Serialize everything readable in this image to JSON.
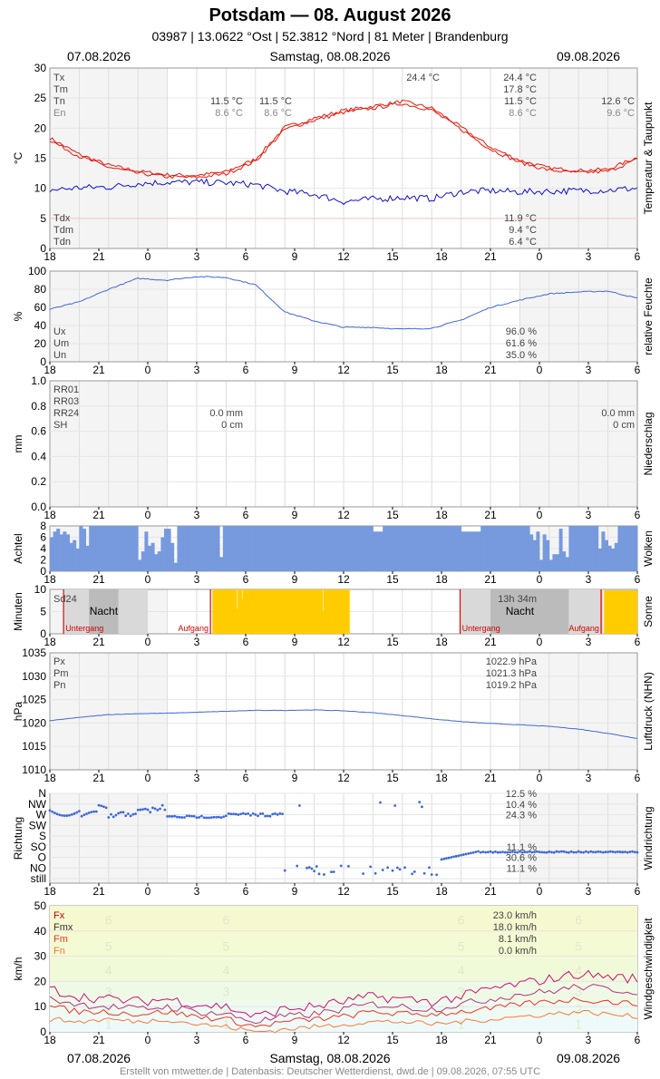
{
  "header": {
    "title": "Potsdam  —  08. August 2026",
    "subtitle": "03987  |  13.0622 °Ost  |  52.3812 °Nord  |  81 Meter  |  Brandenburg",
    "date_left": "07.08.2026",
    "date_center": "Samstag, 08.08.2026",
    "date_right": "09.08.2026"
  },
  "footer": {
    "date_left": "07.08.2026",
    "date_center": "Samstag, 08.08.2026",
    "date_right": "09.08.2026",
    "credit": "Erstellt von mtwetter.de | Datenbasis: Deutscher Wetterdienst, dwd.de | 09.08.2026, 07:55 UTC"
  },
  "x_ticks": [
    "18",
    "21",
    "0",
    "3",
    "6",
    "9",
    "12",
    "15",
    "18",
    "21",
    "0",
    "3",
    "6"
  ],
  "colors": {
    "temp": "#e8180c",
    "dew": "#1010cc",
    "humidity": "#3d68d8",
    "cloud": "#7799dd",
    "sun": "#ffcc00",
    "pressure": "#3d68d8",
    "wind_dir": "#3d68d8",
    "wind_fx": "#cc1077",
    "wind_fmx": "#bb3377",
    "wind_fm": "#ee3322",
    "wind_fn": "#ff7733"
  },
  "chart_data": [
    {
      "id": "temperature",
      "type": "line",
      "ylabel": "°C",
      "side_label": "Temperatur & Taupunkt",
      "ylim": [
        0,
        30
      ],
      "yticks": [
        0,
        5,
        10,
        15,
        20,
        25,
        30
      ],
      "legend_top": [
        "Tx",
        "Tm",
        "Tn",
        "En"
      ],
      "legend_bottom": [
        "Tdx",
        "Tdm",
        "Tdn"
      ],
      "annotations": {
        "day1_tn": "11.5 °C",
        "day1_en": "8.6 °C",
        "day2_tn": "11.5 °C",
        "day2_en": "8.6 °C",
        "peak_label": "24.4 °C",
        "day2_tx": "24.4 °C",
        "day2_tm": "17.8 °C",
        "day2_tn_r": "11.5 °C",
        "day2_en_r": "8.6 °C",
        "day3_tn": "12.6 °C",
        "day3_en": "9.6 °C",
        "tdx": "11.9 °C",
        "tdm": "9.4 °C",
        "tdn": "6.4 °C"
      },
      "series": [
        {
          "name": "Tm",
          "x": [
            0,
            3,
            6,
            9,
            12,
            15,
            18,
            21,
            24,
            27,
            30,
            33,
            36,
            39,
            42,
            45,
            48,
            51,
            54,
            57,
            60
          ],
          "values": [
            18.0,
            15.3,
            13.5,
            12.5,
            11.9,
            11.8,
            12.4,
            14.5,
            19.8,
            21.3,
            22.6,
            23.3,
            24.1,
            23.0,
            19.8,
            16.5,
            14.3,
            13.0,
            12.6,
            12.8,
            14.8
          ]
        },
        {
          "name": "Td",
          "x": [
            0,
            3,
            6,
            9,
            12,
            15,
            18,
            21,
            24,
            27,
            30,
            33,
            36,
            39,
            42,
            45,
            48,
            51,
            54,
            57,
            60
          ],
          "values": [
            9.7,
            10.1,
            10.2,
            10.8,
            11.0,
            11.0,
            10.9,
            10.6,
            9.5,
            9.0,
            7.8,
            8.2,
            8.5,
            8.3,
            9.4,
            9.6,
            9.4,
            9.5,
            9.6,
            9.7,
            10.0
          ]
        }
      ]
    },
    {
      "id": "humidity",
      "type": "line",
      "ylabel": "%",
      "side_label": "relative Feuchte",
      "ylim": [
        0,
        100
      ],
      "yticks": [
        0,
        20,
        40,
        60,
        80,
        100
      ],
      "legend": [
        "Ux",
        "Um",
        "Un"
      ],
      "annotations": {
        "ux": "96.0 %",
        "um": "61.6 %",
        "un": "35.0 %"
      },
      "series": [
        {
          "name": "U",
          "x": [
            0,
            3,
            6,
            9,
            12,
            15,
            18,
            21,
            24,
            27,
            30,
            33,
            36,
            39,
            42,
            45,
            48,
            51,
            54,
            57,
            60
          ],
          "values": [
            58,
            66,
            80,
            92,
            90,
            94,
            93,
            85,
            55,
            45,
            38,
            38,
            36,
            37,
            46,
            60,
            68,
            75,
            77,
            78,
            70
          ]
        }
      ]
    },
    {
      "id": "precipitation",
      "type": "bar",
      "ylabel": "mm",
      "side_label": "Niederschlag",
      "ylim": [
        0,
        1.0
      ],
      "yticks": [
        "0.0",
        "0.2",
        "0.4",
        "0.6",
        "0.8",
        "1.0"
      ],
      "legend": [
        "RR01",
        "RR03",
        "RR24",
        "SH"
      ],
      "annotations": {
        "day1_rr": "0.0 mm",
        "day1_sh": "0 cm",
        "day2_rr": "0.0 mm",
        "day2_sh": "0 cm"
      },
      "values": []
    },
    {
      "id": "clouds",
      "type": "bar",
      "ylabel": "Achtel",
      "side_label": "Wolken",
      "ylim": [
        0,
        8
      ],
      "yticks": [
        0,
        2,
        4,
        6,
        8
      ]
    },
    {
      "id": "sun",
      "type": "bar",
      "ylabel": "Minuten",
      "side_label": "Sonne",
      "ylim": [
        0,
        10
      ],
      "yticks": [
        0,
        5,
        10
      ],
      "labels": {
        "sd24": "Sd24",
        "sd_total": "13h 34m",
        "night": "Nacht",
        "sunset": "Untergang",
        "sunrise": "Aufgang"
      }
    },
    {
      "id": "pressure",
      "type": "line",
      "ylabel": "hPa",
      "side_label": "Luftdruck (NHN)",
      "ylim": [
        1010,
        1035
      ],
      "yticks": [
        1010,
        1015,
        1020,
        1025,
        1030,
        1035
      ],
      "legend": [
        "Px",
        "Pm",
        "Pn"
      ],
      "annotations": {
        "px": "1022.9 hPa",
        "pm": "1021.3 hPa",
        "pn": "1019.2 hPa"
      },
      "series": [
        {
          "name": "P",
          "x": [
            0,
            3,
            6,
            9,
            12,
            15,
            18,
            21,
            24,
            27,
            30,
            33,
            36,
            39,
            42,
            45,
            48,
            51,
            54,
            57,
            60
          ],
          "values": [
            1020.5,
            1021.2,
            1021.8,
            1022.0,
            1022.1,
            1022.3,
            1022.5,
            1022.7,
            1022.7,
            1022.8,
            1022.6,
            1022.2,
            1021.6,
            1020.9,
            1020.3,
            1019.9,
            1019.6,
            1019.3,
            1018.7,
            1017.8,
            1016.7
          ]
        }
      ]
    },
    {
      "id": "wind_direction",
      "type": "scatter",
      "ylabel": "Richtung",
      "side_label": "Windrichtung",
      "categories": [
        "N",
        "NW",
        "W",
        "SW",
        "S",
        "SO",
        "O",
        "NO",
        "still"
      ],
      "annotations": {
        "n": "12.5 %",
        "nw": "10.4 %",
        "w": "24.3 %",
        "so": "11.1 %",
        "o": "30.6 %",
        "no": "11.1 %"
      }
    },
    {
      "id": "wind_speed",
      "type": "line",
      "ylabel": "km/h",
      "side_label": "Windgeschwindigkeit",
      "ylim": [
        0,
        50
      ],
      "yticks": [
        0,
        10,
        20,
        30,
        40,
        50
      ],
      "legend": [
        "Fx",
        "Fmx",
        "Fm",
        "Fn"
      ],
      "annotations": {
        "fx": "23.0 km/h",
        "fmx": "18.0 km/h",
        "fm": "8.1 km/h",
        "fn": "0.0 km/h"
      },
      "beaufort": [
        "1",
        "2",
        "3",
        "4",
        "5",
        "6"
      ],
      "series": [
        {
          "name": "Fx",
          "x": [
            0,
            3,
            6,
            9,
            12,
            15,
            18,
            21,
            24,
            27,
            30,
            33,
            36,
            39,
            42,
            45,
            48,
            51,
            54,
            57,
            60
          ],
          "values": [
            17,
            14,
            13,
            12,
            13,
            11,
            10,
            6,
            9,
            10,
            12,
            14,
            13,
            12,
            14,
            17,
            19,
            21,
            23,
            22,
            21
          ]
        },
        {
          "name": "Fmx",
          "x": [
            0,
            3,
            6,
            9,
            12,
            15,
            18,
            21,
            24,
            27,
            30,
            33,
            36,
            39,
            42,
            45,
            48,
            51,
            54,
            57,
            60
          ],
          "values": [
            13,
            11,
            10,
            9,
            10,
            8,
            7,
            4,
            6,
            7,
            9,
            11,
            10,
            9,
            11,
            13,
            15,
            16,
            18,
            17,
            16
          ]
        },
        {
          "name": "Fm",
          "x": [
            0,
            3,
            6,
            9,
            12,
            15,
            18,
            21,
            24,
            27,
            30,
            33,
            36,
            39,
            42,
            45,
            48,
            51,
            54,
            57,
            60
          ],
          "values": [
            10,
            8,
            8,
            7,
            8,
            6,
            5,
            2,
            4,
            5,
            6,
            8,
            7,
            7,
            8,
            9,
            11,
            12,
            13,
            12,
            11
          ]
        },
        {
          "name": "Fn",
          "x": [
            0,
            3,
            6,
            9,
            12,
            15,
            18,
            21,
            24,
            27,
            30,
            33,
            36,
            39,
            42,
            45,
            48,
            51,
            54,
            57,
            60
          ],
          "values": [
            5,
            4,
            5,
            4,
            5,
            3,
            2,
            0,
            1,
            2,
            3,
            4,
            4,
            3,
            4,
            5,
            6,
            7,
            8,
            7,
            6
          ]
        }
      ]
    }
  ]
}
